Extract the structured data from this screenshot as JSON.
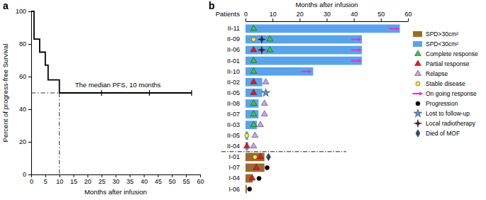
{
  "chart_data": [
    {
      "type": "line",
      "panel": "a",
      "x_label": "Months after infusion",
      "y_label": "Percent of progress-free Survival",
      "xlim": [
        0,
        60
      ],
      "ylim": [
        0,
        100
      ],
      "xticks": [
        0,
        5,
        10,
        15,
        20,
        25,
        30,
        35,
        40,
        45,
        50,
        55,
        60
      ],
      "yticks": [
        0,
        20,
        40,
        60,
        80,
        100
      ],
      "series": [
        {
          "x": [
            0,
            1,
            3,
            5,
            6,
            10,
            57
          ],
          "values": [
            100,
            83,
            75,
            67,
            58,
            50,
            50
          ],
          "color": "#000000",
          "line_style": "step"
        },
        {
          "x": [
            25,
            42,
            57
          ],
          "values": [
            50,
            50,
            50
          ],
          "color": "#000000",
          "marker": "tick"
        }
      ],
      "median_line": {
        "x": 10,
        "y": 50,
        "line_style": "dashdot"
      },
      "annotation": "The median PFS, 10 months"
    },
    {
      "type": "bar",
      "orientation": "horizontal",
      "panel": "b",
      "x_label": "Months after infusion",
      "y_label": "Patients",
      "xlim": [
        0,
        60
      ],
      "xticks": [
        0,
        10,
        20,
        30,
        40,
        50,
        60
      ],
      "categories": [
        "II-11",
        "II-09",
        "II-06",
        "II-01",
        "II-10",
        "II-02",
        "II-05",
        "II-08",
        "II-07",
        "II-03",
        "II-05",
        "II-04",
        "I-01",
        "I-07",
        "I-04",
        "I-06"
      ],
      "series": [
        {
          "name": "SPD>30cm²",
          "color": "#9c6a2e",
          "values": [
            null,
            null,
            null,
            null,
            null,
            null,
            null,
            null,
            null,
            null,
            null,
            null,
            7,
            7,
            2.7,
            0.5
          ]
        },
        {
          "name": "SPD<30cm²",
          "color": "#5ba3e8",
          "values": [
            57,
            43,
            43,
            43,
            25,
            6.2,
            6.2,
            4.8,
            4.8,
            4.2,
            1,
            1,
            null,
            null,
            null,
            null
          ]
        }
      ],
      "events": [
        {
          "name": "Complete response",
          "color": "#2ecc40",
          "marker": "triangle",
          "values": [
            3,
            9,
            9,
            3,
            3,
            null,
            null,
            3,
            3,
            3,
            null,
            null,
            null,
            null,
            null,
            null
          ]
        },
        {
          "name": "Partial response",
          "color": "#e8191f",
          "marker": "triangle",
          "values": [
            null,
            null,
            3,
            null,
            null,
            3,
            3,
            null,
            null,
            null,
            null,
            0.5,
            5.5,
            4,
            2.5,
            null
          ]
        },
        {
          "name": "Relapse",
          "color": "#c9a0e8",
          "marker": "triangle",
          "values": [
            null,
            null,
            null,
            null,
            null,
            7.5,
            null,
            7,
            7,
            5.5,
            3.5,
            3,
            null,
            null,
            null,
            null
          ]
        },
        {
          "name": "Stable disease",
          "color": "#f5e642",
          "marker": "circle",
          "values": [
            null,
            3,
            null,
            null,
            null,
            null,
            null,
            null,
            null,
            null,
            0.5,
            null,
            3.5,
            null,
            null,
            null
          ]
        },
        {
          "name": "On going response",
          "color": "#e030e0",
          "marker": "arrow",
          "values": [
            55,
            41,
            41,
            41,
            22.5,
            null,
            null,
            null,
            null,
            null,
            null,
            null,
            null,
            null,
            null,
            null
          ]
        },
        {
          "name": "Progression",
          "color": "#000000",
          "marker": "circle",
          "values": [
            null,
            null,
            null,
            null,
            null,
            null,
            null,
            null,
            null,
            null,
            null,
            null,
            null,
            8,
            5,
            1.5
          ]
        },
        {
          "name": "Lost to follow-up",
          "color": "#5b8fd0",
          "marker": "star",
          "values": [
            null,
            null,
            null,
            null,
            null,
            null,
            7.5,
            null,
            null,
            null,
            null,
            null,
            null,
            null,
            null,
            null
          ]
        },
        {
          "name": "Local radiotherapy",
          "color": "#4a2040",
          "marker": "star4",
          "values": [
            null,
            6,
            6,
            null,
            null,
            null,
            null,
            null,
            null,
            null,
            null,
            null,
            null,
            null,
            null,
            null
          ]
        },
        {
          "name": "Died of MOF",
          "color": "#2b4a6b",
          "marker": "diamond",
          "values": [
            null,
            null,
            null,
            null,
            null,
            null,
            null,
            null,
            null,
            null,
            null,
            null,
            8.5,
            null,
            null,
            null
          ]
        }
      ],
      "legend": "right"
    }
  ]
}
